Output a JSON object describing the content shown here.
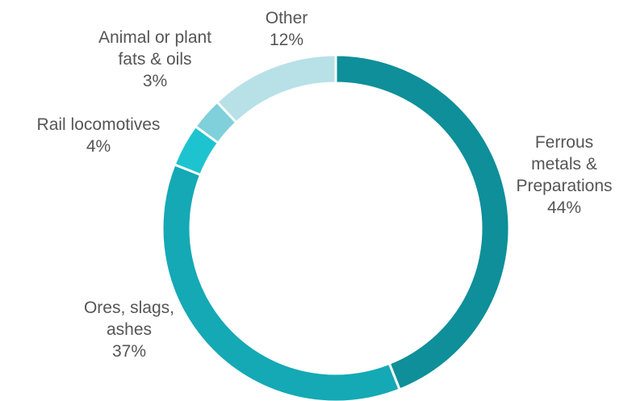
{
  "chart_data": {
    "type": "pie",
    "variant": "donut",
    "title": "",
    "legend": "none",
    "slices": [
      {
        "key": "ferrous",
        "label_lines": [
          "Ferrous",
          "metals &",
          "Preparations"
        ],
        "value": 44,
        "value_label": "44%",
        "color": "#0e8f99"
      },
      {
        "key": "ores",
        "label_lines": [
          "Ores, slags,",
          "ashes"
        ],
        "value": 37,
        "value_label": "37%",
        "color": "#14a9b5"
      },
      {
        "key": "rail",
        "label_lines": [
          "Rail locomotives"
        ],
        "value": 4,
        "value_label": "4%",
        "color": "#1ec3d0"
      },
      {
        "key": "fats",
        "label_lines": [
          "Animal or plant",
          "fats & oils"
        ],
        "value": 3,
        "value_label": "3%",
        "color": "#7fd0da"
      },
      {
        "key": "other",
        "label_lines": [
          "Other"
        ],
        "value": 12,
        "value_label": "12%",
        "color": "#b7e1e7"
      }
    ]
  }
}
